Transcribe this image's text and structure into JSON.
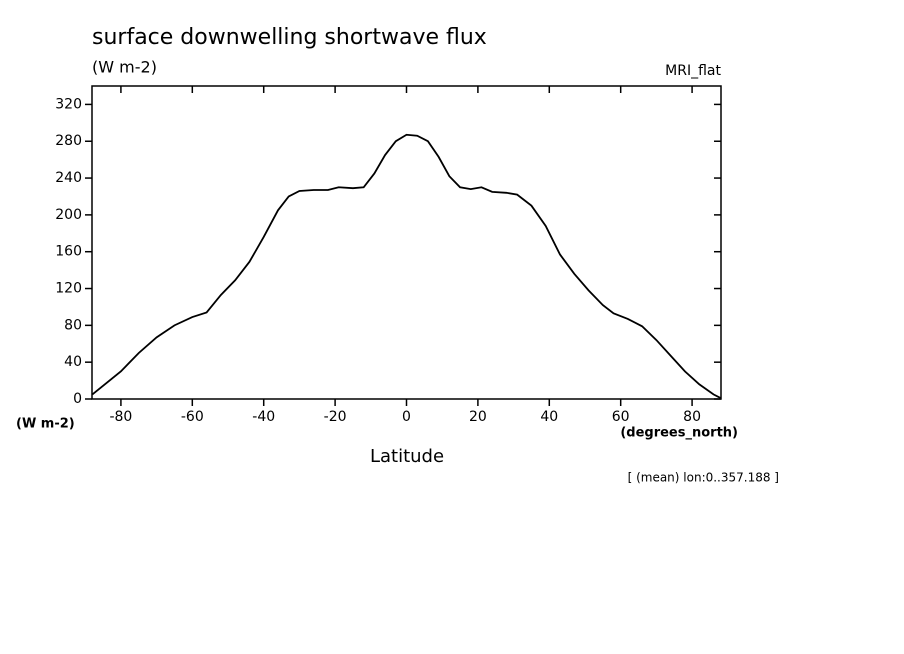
{
  "chart_data": {
    "type": "line",
    "title": "surface downwelling shortwave flux",
    "units": "(W m-2)",
    "dataset": "MRI_flat",
    "y_label": "(W m-2)",
    "x_units": "(degrees_north)",
    "x_label": "Latitude",
    "annotation": "[ (mean) lon:0..357.188 ]",
    "x": [
      -88,
      -80,
      -75,
      -70,
      -65,
      -60,
      -56,
      -52,
      -48,
      -44,
      -40,
      -36,
      -33,
      -30,
      -26,
      -22,
      -19,
      -15,
      -12,
      -9,
      -6,
      -3,
      0,
      3,
      6,
      9,
      12,
      15,
      18,
      21,
      24,
      28,
      31,
      35,
      39,
      43,
      47,
      51,
      55,
      58,
      62,
      66,
      70,
      74,
      78,
      82,
      86,
      88
    ],
    "series": [
      {
        "name": "MRI_flat",
        "color": "#000000",
        "values": [
          5,
          30,
          50,
          67,
          80,
          89,
          94,
          113,
          129,
          149,
          176,
          205,
          220,
          226,
          227,
          227,
          230,
          229,
          230,
          245,
          265,
          280,
          287,
          286,
          280,
          263,
          242,
          230,
          228,
          230,
          225,
          224,
          222,
          210,
          188,
          157,
          136,
          118,
          102,
          93,
          87,
          79,
          64,
          47,
          30,
          16,
          5,
          1
        ]
      }
    ],
    "xlim": [
      -88.1,
      88.1
    ],
    "ylim": [
      0,
      340
    ],
    "xticks": [
      -80,
      -60,
      -40,
      -20,
      0,
      20,
      40,
      60,
      80
    ],
    "yticks": [
      0,
      40,
      80,
      120,
      160,
      200,
      240,
      280,
      320
    ]
  }
}
